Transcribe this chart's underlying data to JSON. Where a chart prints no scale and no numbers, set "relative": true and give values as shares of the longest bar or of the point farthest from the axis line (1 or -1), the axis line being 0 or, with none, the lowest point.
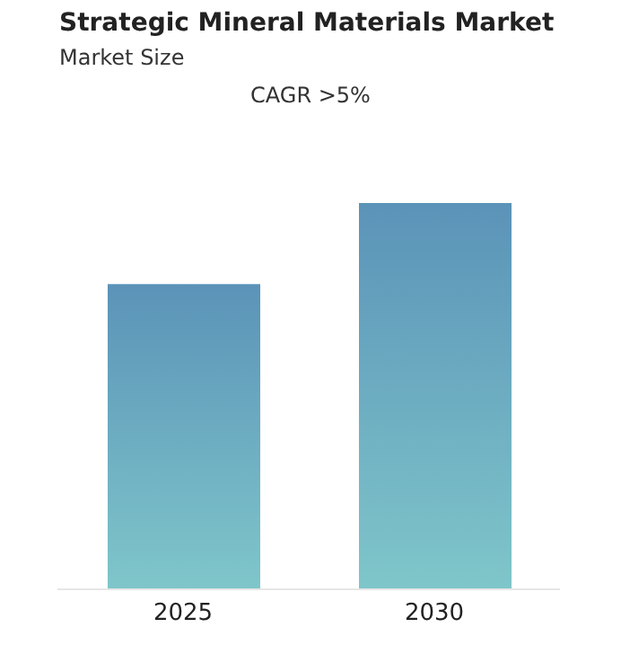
{
  "chart_data": {
    "type": "bar",
    "title": "Strategic Mineral Materials Market",
    "subtitle": "Market Size",
    "annotations": [
      "CAGR >5%"
    ],
    "categories": [
      "2025",
      "2030"
    ],
    "values": [
      0.79,
      1
    ],
    "color": "#5b93b8",
    "relative": true,
    "grid": false,
    "legend": false
  }
}
